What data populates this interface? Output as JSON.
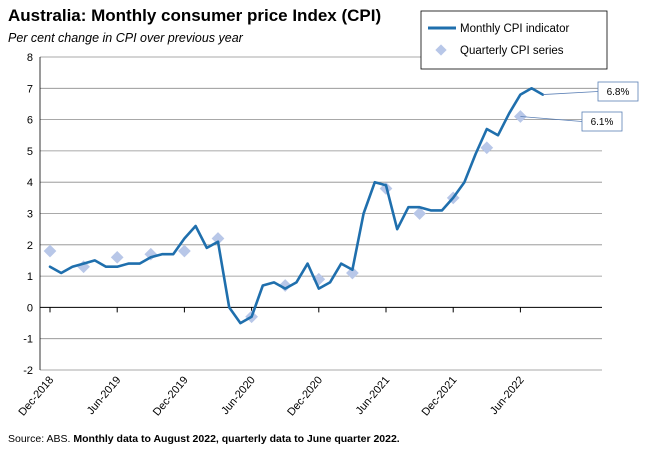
{
  "title": "Australia: Monthly consumer price Index (CPI)",
  "subtitle": "Per cent change in CPI over previous year",
  "source": {
    "prefix": "Source: ABS.",
    "note": "Monthly data to August 2022, quarterly data to June quarter 2022."
  },
  "colors": {
    "monthly": "#1f6fad",
    "quarterly": "#b8c7e8",
    "grid": "#8c8c8c"
  },
  "chart_data": {
    "type": "line",
    "title": "Australia: Monthly consumer price Index (CPI)",
    "ylabel": "Per cent change in CPI over previous year",
    "ylim": [
      -2,
      8
    ],
    "yticks": [
      -2,
      -1,
      0,
      1,
      2,
      3,
      4,
      5,
      6,
      7,
      8
    ],
    "xtick_labels": [
      "Dec-2018",
      "Jun-2019",
      "Dec-2019",
      "Jun-2020",
      "Dec-2020",
      "Jun-2021",
      "Dec-2021",
      "Jun-2022"
    ],
    "xtick_month_index": [
      0,
      6,
      12,
      18,
      24,
      30,
      36,
      42
    ],
    "months_span": [
      0,
      44
    ],
    "legend": {
      "placement": "top-right",
      "entries": [
        "Monthly CPI indicator",
        "Quarterly CPI series"
      ]
    },
    "series": [
      {
        "name": "Monthly CPI indicator",
        "style": "line",
        "month_index": [
          0,
          1,
          2,
          3,
          4,
          5,
          6,
          7,
          8,
          9,
          10,
          11,
          12,
          13,
          14,
          15,
          16,
          17,
          18,
          19,
          20,
          21,
          22,
          23,
          24,
          25,
          26,
          27,
          28,
          29,
          30,
          31,
          32,
          33,
          34,
          35,
          36,
          37,
          38,
          39,
          40,
          41,
          42,
          43,
          44
        ],
        "values": [
          1.3,
          1.1,
          1.3,
          1.4,
          1.5,
          1.3,
          1.3,
          1.4,
          1.4,
          1.6,
          1.7,
          1.7,
          2.2,
          2.6,
          1.9,
          2.1,
          0.0,
          -0.5,
          -0.3,
          0.7,
          0.8,
          0.6,
          0.8,
          1.4,
          0.6,
          0.8,
          1.4,
          1.2,
          3.0,
          4.0,
          3.9,
          2.5,
          3.2,
          3.2,
          3.1,
          3.1,
          3.5,
          4.0,
          4.9,
          5.7,
          5.5,
          6.2,
          6.8,
          7.0,
          6.8
        ]
      },
      {
        "name": "Quarterly CPI series",
        "style": "marker",
        "month_index": [
          0,
          3,
          6,
          9,
          12,
          15,
          18,
          21,
          24,
          27,
          30,
          33,
          36,
          39,
          42
        ],
        "values": [
          1.8,
          1.3,
          1.6,
          1.7,
          1.8,
          2.2,
          -0.3,
          0.7,
          0.9,
          1.1,
          3.8,
          3.0,
          3.5,
          5.1,
          6.1
        ]
      }
    ],
    "annotations": [
      {
        "label": "6.8%",
        "series": "Monthly CPI indicator",
        "month_index": 44,
        "value": 6.8
      },
      {
        "label": "6.1%",
        "series": "Quarterly CPI series",
        "month_index": 42,
        "value": 6.1
      }
    ]
  }
}
